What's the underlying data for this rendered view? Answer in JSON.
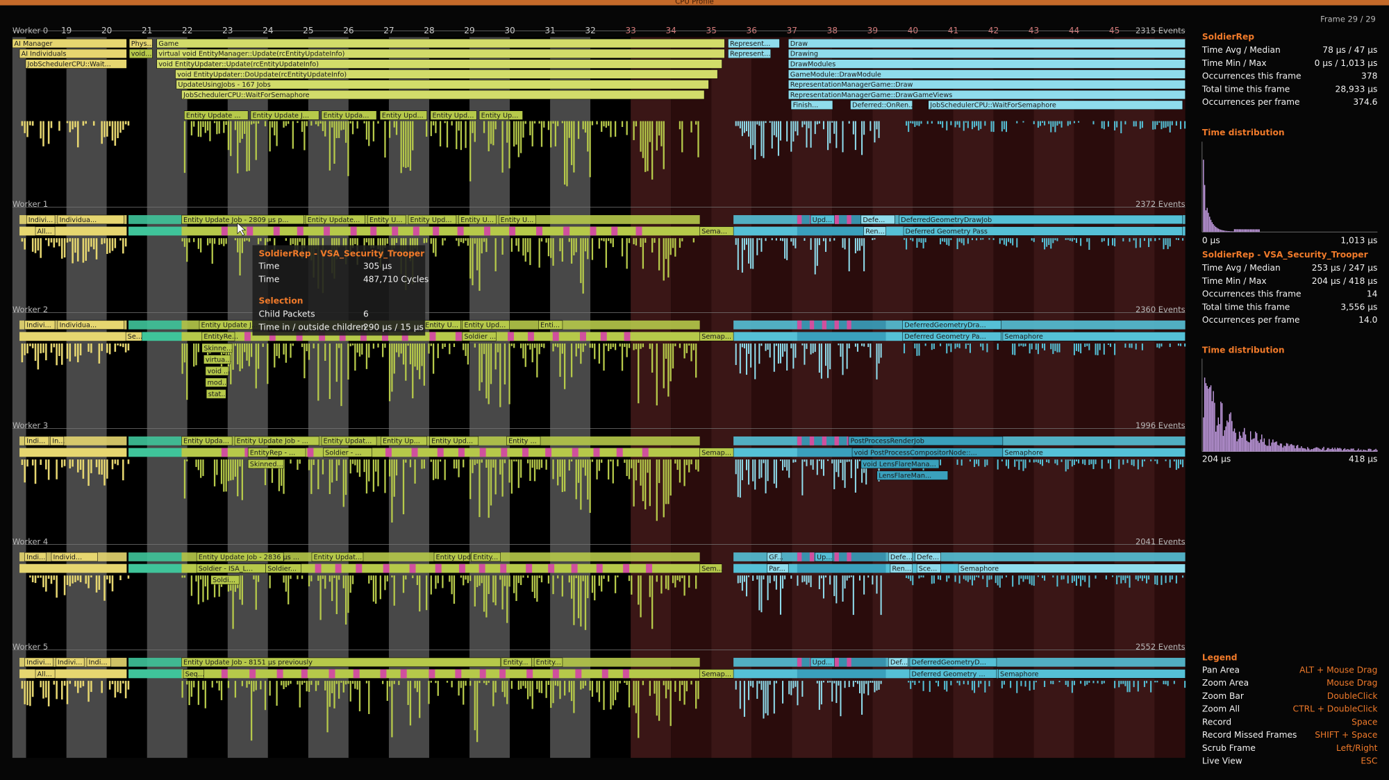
{
  "title": "CPU Profile",
  "frame": "Frame 29 / 29",
  "timeline": {
    "ticks": [
      "19",
      "20",
      "21",
      "22",
      "23",
      "24",
      "25",
      "26",
      "27",
      "28",
      "29",
      "30",
      "31",
      "32",
      "33",
      "34",
      "35",
      "36",
      "37",
      "38",
      "39",
      "40",
      "41",
      "42",
      "43",
      "44",
      "45"
    ]
  },
  "workers": [
    {
      "name": "Worker 0",
      "events": "2315 Events",
      "blocks": [
        "AI Manager",
        "Phys...",
        "Game",
        "Represent...",
        "Draw",
        "AI Individuals",
        "void...",
        "virtual void EntityManager::Update(rcEntityUpdateInfo)",
        "Represent...",
        "Drawing",
        "JobSchedulerCPU::Wait...",
        "void EntityUpdater::Update(rcEntityUpdateInfo)",
        "DrawModules",
        "void EntityUpdater::DoUpdate(rcEntityUpdateInfo)",
        "GameModule::DrawModule",
        "UpdateUsingJobs - 167 Jobs",
        "RepresentationManagerGame::Draw",
        "JobSchedulerCPU::WaitForSemaphore",
        "RepresentationManagerGame::DrawGameViews",
        "Finish...",
        "Deferred::OnRen...",
        "JobSchedulerCPU::WaitForSemaphore",
        "Entity Update ...",
        "Entity Update J...",
        "Entity Upda...",
        "Entity Upd...",
        "Entity Upd...",
        "Entity Up..."
      ]
    },
    {
      "name": "Worker 1",
      "events": "2372 Events",
      "blocks": [
        "Indivi...",
        "Individua...",
        "Entity Update Job - 2809 µs p...",
        "Entity Update...",
        "Entity U...",
        "Entity Upd...",
        "Entity U...",
        "Entity U...",
        "Upd...",
        "Defe...",
        "DeferredGeometryDrawJob",
        "All...",
        "Sema...",
        "Ren...",
        "Deferred Geometry Pass"
      ]
    },
    {
      "name": "Worker 2",
      "events": "2360 Events",
      "blocks": [
        "Indivi...",
        "Individua...",
        "Entity Update J...",
        "Entity U...",
        "Entity Upd...",
        "Enti...",
        "DeferredGeometryDra...",
        "Se...",
        "EntityRe...",
        "Soldier ...",
        "Semap...",
        "Deferred Geometry Pa...",
        "Semaphore",
        "Skinne...",
        "virtua...",
        "void ...",
        "mod...",
        "stat..."
      ]
    },
    {
      "name": "Worker 3",
      "events": "1996 Events",
      "blocks": [
        "Indi...",
        "In...",
        "Entity Upda...",
        "Entity Update Job - ...",
        "Entity Updat...",
        "Entity Up...",
        "Entity Upd...",
        "Entity ...",
        "PostProcessRenderJob",
        "EntityRep - ...",
        "Soldier - ...",
        "Semap...",
        "void PostProcessCompositorNode::...",
        "Semaphore",
        "Skinned...",
        "void LensFlareMana...",
        "LensFlareMan..."
      ]
    },
    {
      "name": "Worker 4",
      "events": "2041 Events",
      "blocks": [
        "Indi...",
        "Individ...",
        "Entity Update Job - 2836 µs ...",
        "Entity Updat...",
        "Entity Upd...",
        "Entity...",
        "GF...",
        "Up...",
        "Defe...",
        "Defe...",
        "Soldier - ISA_L...",
        "Soldier...",
        "Sem...",
        "Par...",
        "Ren...",
        "Sce...",
        "Semaphore",
        "Soldi..."
      ]
    },
    {
      "name": "Worker 5",
      "events": "2552 Events",
      "blocks": [
        "Indivi...",
        "Indivi...",
        "Indi...",
        "Entity Update Job - 8151 µs previously",
        "Entity...",
        "Entity...",
        "Upd...",
        "Def...",
        "DeferredGeometryD...",
        "All...",
        "Seq...",
        "Semap...",
        "Deferred Geometry ...",
        "Semaphore"
      ]
    }
  ],
  "tooltip": {
    "title": "SoldierRep - VSA_Security_Trooper",
    "rows": [
      {
        "label": "Time",
        "value": "305 µs"
      },
      {
        "label": "Time",
        "value": "487,710 Cycles"
      }
    ],
    "section": "Selection",
    "rows2": [
      {
        "label": "Child Packets",
        "value": "6"
      },
      {
        "label": "Time in / outside children",
        "value": "290 µs / 15 µs"
      }
    ]
  },
  "panel": [
    {
      "name": "SoldierRep",
      "rows": [
        {
          "label": "Time Avg / Median",
          "value": "78 µs / 47 µs"
        },
        {
          "label": "Time Min / Max",
          "value": "0 µs / 1,013 µs"
        },
        {
          "label": "Occurrences this frame",
          "value": "378"
        },
        {
          "label": "Total time this frame",
          "value": "28,933 µs"
        },
        {
          "label": "Occurrences per frame",
          "value": "374.6"
        }
      ],
      "dist_title": "Time distribution",
      "dist_min": "0 µs",
      "dist_max": "1,013 µs"
    },
    {
      "name": "SoldierRep - VSA_Security_Trooper",
      "rows": [
        {
          "label": "Time Avg / Median",
          "value": "253 µs / 247 µs"
        },
        {
          "label": "Time Min / Max",
          "value": "204 µs / 418 µs"
        },
        {
          "label": "Occurrences this frame",
          "value": "14"
        },
        {
          "label": "Total time this frame",
          "value": "3,556 µs"
        },
        {
          "label": "Occurrences per frame",
          "value": "14.0"
        }
      ],
      "dist_title": "Time distribution",
      "dist_min": "204 µs",
      "dist_max": "418 µs"
    }
  ],
  "legend": {
    "title": "Legend",
    "items": [
      {
        "action": "Pan Area",
        "key": "ALT + Mouse Drag"
      },
      {
        "action": "Zoom Area",
        "key": "Mouse Drag"
      },
      {
        "action": "Zoom Bar",
        "key": "DoubleClick"
      },
      {
        "action": "Zoom All",
        "key": "CTRL + DoubleClick"
      },
      {
        "action": "Record",
        "key": "Space"
      },
      {
        "action": "Record Missed Frames",
        "key": "SHIFT + Space"
      },
      {
        "action": "Scrub Frame",
        "key": "Left/Right"
      },
      {
        "action": "Live View",
        "key": "ESC"
      }
    ]
  }
}
